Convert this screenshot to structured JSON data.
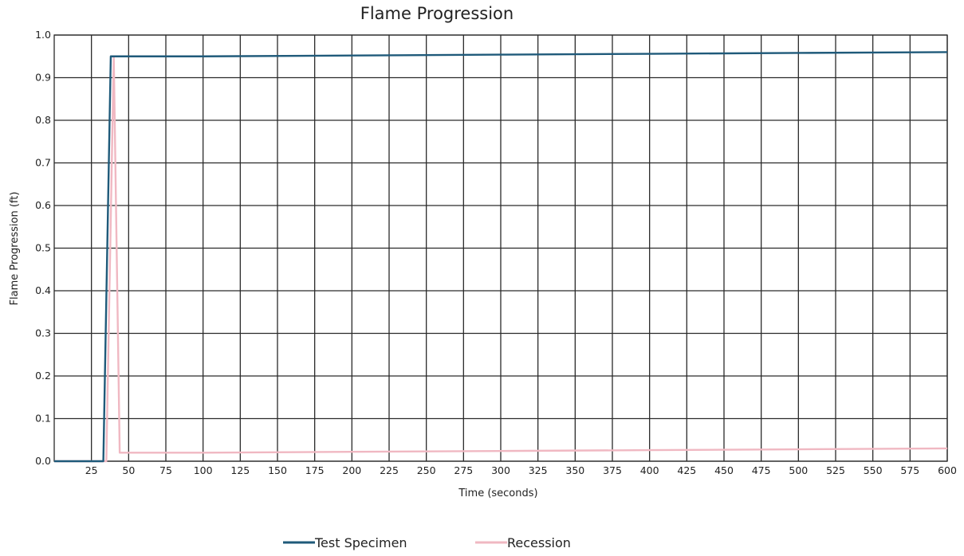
{
  "chart_data": {
    "type": "line",
    "title": "Flame Progression",
    "xlabel": "Time (seconds)",
    "ylabel": "Flame Progression (ft)",
    "xlim": [
      0,
      600
    ],
    "ylim": [
      0,
      1.0
    ],
    "x_ticks": [
      25,
      50,
      75,
      100,
      125,
      150,
      175,
      200,
      225,
      250,
      275,
      300,
      325,
      350,
      375,
      400,
      425,
      450,
      475,
      500,
      525,
      550,
      575,
      600
    ],
    "x_tick_labels": [
      "25",
      "50",
      "75",
      "100",
      "125",
      "150",
      "175",
      "200",
      "225",
      "250",
      "275",
      "300",
      "325",
      "350",
      "375",
      "400",
      "425",
      "450",
      "475",
      "500",
      "525",
      "550",
      "575",
      "600"
    ],
    "y_ticks": [
      0.0,
      0.1,
      0.2,
      0.3,
      0.4,
      0.5,
      0.6,
      0.7,
      0.8,
      0.9,
      1.0
    ],
    "y_tick_labels": [
      "0.0",
      "0.1",
      "0.2",
      "0.3",
      "0.4",
      "0.5",
      "0.6",
      "0.7",
      "0.8",
      "0.9",
      "1.0"
    ],
    "grid": true,
    "legend_position": "bottom-center",
    "series": [
      {
        "name": "Test Specimen",
        "color": "#1f5a7a",
        "x": [
          0,
          33,
          38,
          100,
          200,
          300,
          400,
          500,
          600
        ],
        "y": [
          0.0,
          0.0,
          0.95,
          0.95,
          0.952,
          0.954,
          0.956,
          0.958,
          0.96
        ]
      },
      {
        "name": "Recession",
        "color": "#f0b8c2",
        "x": [
          0,
          35,
          40,
          44,
          100,
          200,
          300,
          400,
          500,
          600
        ],
        "y": [
          0.0,
          0.0,
          0.95,
          0.02,
          0.02,
          0.022,
          0.024,
          0.026,
          0.028,
          0.03
        ]
      }
    ]
  }
}
